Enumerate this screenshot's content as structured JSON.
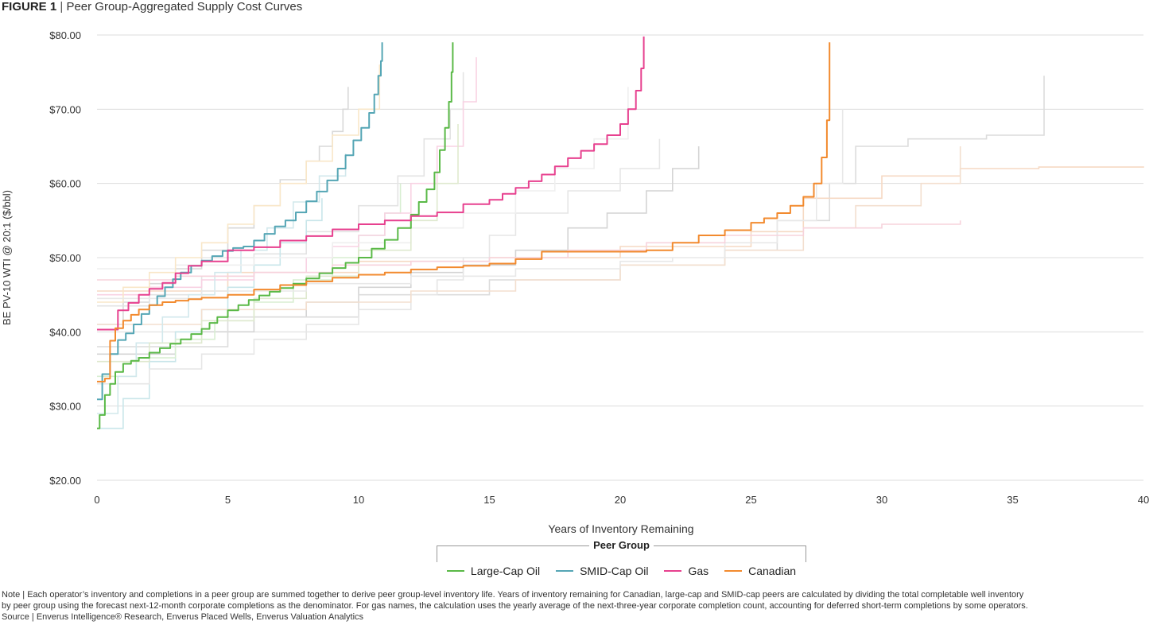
{
  "figure": {
    "number": "FIGURE 1",
    "separator": "|",
    "title": "Peer Group-Aggregated Supply Cost Curves"
  },
  "legend": {
    "title": "Peer Group",
    "items": [
      {
        "label": "Large-Cap Oil",
        "color": "#5ab947"
      },
      {
        "label": "SMID-Cap Oil",
        "color": "#55a6b5"
      },
      {
        "label": "Gas",
        "color": "#e7418f"
      },
      {
        "label": "Canadian",
        "color": "#f28a2e"
      }
    ]
  },
  "notes": {
    "line1": "Note | Each operator’s inventory and completions in a peer group are summed together to derive peer group-level inventory life. Years of inventory remaining for Canadian, large-cap and SMID-cap peers are calculated by dividing the total completable well inventory",
    "line2": "by peer group using the forecast next-12-month corporate completions as the denominator. For gas names, the calculation uses the yearly average of the next-three-year corporate completion count, accounting for deferred short-term completions by some operators.",
    "line3": "Source | Enverus Intelligence® Research, Enverus Placed Wells, Enverus Valuation Analytics"
  },
  "chart_data": {
    "type": "line",
    "title": "Peer Group-Aggregated Supply Cost Curves",
    "xlabel": "Years of Inventory Remaining",
    "ylabel": "BE PV-10 WTI @ 20:1 ($/bbl)",
    "xlim": [
      0,
      40
    ],
    "ylim": [
      20,
      80
    ],
    "x_ticks": [
      0,
      5,
      10,
      15,
      20,
      25,
      30,
      35,
      40
    ],
    "x_tick_labels": [
      "0",
      "5",
      "10",
      "15",
      "20",
      "25",
      "30",
      "35",
      "40"
    ],
    "y_ticks": [
      20,
      30,
      40,
      50,
      60,
      70,
      80
    ],
    "y_tick_labels": [
      "$20.00",
      "$30.00",
      "$40.00",
      "$50.00",
      "$60.00",
      "$70.00",
      "$80.00"
    ],
    "grid": "horizontal",
    "legend_position": "bottom-center",
    "step_curves": true,
    "series": [
      {
        "name": "Large-Cap Oil",
        "color": "#5ab947",
        "x": [
          0,
          0.1,
          0.3,
          0.5,
          0.7,
          1.0,
          1.3,
          1.6,
          2.0,
          2.4,
          2.8,
          3.2,
          3.6,
          4.0,
          4.3,
          4.6,
          5.0,
          5.4,
          5.8,
          6.2,
          6.6,
          7.0,
          7.5,
          8.0,
          8.5,
          9.0,
          9.5,
          10.0,
          10.5,
          11.0,
          11.5,
          12.0,
          12.3,
          12.6,
          12.9,
          13.1,
          13.3,
          13.45,
          13.55,
          13.6
        ],
        "y": [
          27.0,
          28.8,
          31.5,
          33.0,
          34.6,
          35.7,
          36.1,
          36.5,
          37.2,
          37.8,
          38.4,
          39.0,
          39.7,
          40.4,
          41.2,
          42.0,
          42.9,
          43.6,
          44.3,
          44.9,
          45.4,
          45.9,
          46.5,
          47.2,
          47.9,
          48.6,
          49.3,
          50.0,
          51.2,
          52.4,
          54.0,
          55.8,
          57.5,
          59.2,
          61.5,
          64.5,
          67.5,
          71.0,
          75.0,
          79.0
        ]
      },
      {
        "name": "SMID-Cap Oil",
        "color": "#55a6b5",
        "x": [
          0,
          0.2,
          0.5,
          0.8,
          1.1,
          1.4,
          1.7,
          2.0,
          2.3,
          2.6,
          2.9,
          3.2,
          3.6,
          4.0,
          4.4,
          4.8,
          5.2,
          5.6,
          6.0,
          6.4,
          6.8,
          7.2,
          7.6,
          8.0,
          8.4,
          8.8,
          9.2,
          9.5,
          9.8,
          10.1,
          10.4,
          10.6,
          10.75,
          10.85,
          10.9
        ],
        "y": [
          30.9,
          34.3,
          37.0,
          38.9,
          39.8,
          41.0,
          42.4,
          43.6,
          44.8,
          46.0,
          47.1,
          48.0,
          48.9,
          49.6,
          50.2,
          50.9,
          51.3,
          51.5,
          52.3,
          53.2,
          54.2,
          55.0,
          56.1,
          57.6,
          58.9,
          60.4,
          62.0,
          63.8,
          65.8,
          67.5,
          69.5,
          72.0,
          74.5,
          76.5,
          79.0
        ]
      },
      {
        "name": "Gas",
        "color": "#e7418f",
        "x": [
          0,
          0.8,
          1.2,
          1.6,
          2.0,
          2.5,
          3.0,
          3.5,
          4.0,
          5.0,
          6.0,
          7.0,
          8.0,
          9.0,
          10.0,
          11.0,
          12.0,
          13.0,
          14.0,
          15.0,
          15.5,
          16.0,
          16.5,
          17.0,
          17.5,
          18.0,
          18.5,
          19.0,
          19.5,
          20.0,
          20.3,
          20.6,
          20.8,
          20.9
        ],
        "y": [
          40.3,
          42.9,
          43.9,
          45.0,
          45.8,
          46.6,
          47.9,
          48.9,
          49.5,
          51.0,
          51.4,
          52.3,
          52.9,
          53.8,
          54.5,
          55.0,
          55.6,
          56.1,
          57.2,
          57.8,
          58.6,
          59.4,
          60.3,
          61.2,
          62.3,
          63.4,
          64.4,
          65.3,
          66.5,
          68.0,
          70.0,
          72.5,
          75.5,
          79.8
        ]
      },
      {
        "name": "Canadian",
        "color": "#f28a2e",
        "x": [
          0,
          0.3,
          0.5,
          0.7,
          1.0,
          1.3,
          1.6,
          2.0,
          2.5,
          3.0,
          3.5,
          4.0,
          5.0,
          6.0,
          7.0,
          8.0,
          9.0,
          10.0,
          11.0,
          12.0,
          13.0,
          14.0,
          15.0,
          16.0,
          17.0,
          18.0,
          19.0,
          20.0,
          21.0,
          22.0,
          23.0,
          24.0,
          25.0,
          25.5,
          26.0,
          26.5,
          27.0,
          27.4,
          27.7,
          27.9,
          28.0
        ],
        "y": [
          33.3,
          33.7,
          38.8,
          40.5,
          41.5,
          42.3,
          43.0,
          43.6,
          44.0,
          44.2,
          44.4,
          44.6,
          45.0,
          45.7,
          46.3,
          46.8,
          47.3,
          47.7,
          48.0,
          48.4,
          48.7,
          48.9,
          49.2,
          49.8,
          50.8,
          50.8,
          50.8,
          50.8,
          51.0,
          52.0,
          53.0,
          53.7,
          54.7,
          55.3,
          56.0,
          57.0,
          58.2,
          60.0,
          63.5,
          68.5,
          79.0
        ]
      }
    ]
  },
  "background_curves": [
    {
      "color": "#d8d8d8",
      "x": [
        0,
        1,
        2,
        3,
        4,
        5,
        6,
        7,
        8,
        8.5,
        9.0,
        9.4,
        9.6
      ],
      "y": [
        41.0,
        44.0,
        46.5,
        48.5,
        51.0,
        54.0,
        57.0,
        60.5,
        63.0,
        65.0,
        67.0,
        70.0,
        73.0
      ]
    },
    {
      "color": "#e3e3e3",
      "x": [
        0,
        2,
        4,
        6,
        8,
        10,
        11.5,
        12.5,
        13.5,
        14.0
      ],
      "y": [
        43.5,
        45.0,
        47.5,
        50.5,
        53.5,
        57.0,
        61.0,
        66.0,
        70.0,
        75.0
      ]
    },
    {
      "color": "#d4d4d4",
      "x": [
        0,
        3,
        6,
        8,
        10,
        12,
        14,
        16,
        18,
        19.5,
        21,
        22,
        23.0
      ],
      "y": [
        37.0,
        40.0,
        42.0,
        44.0,
        46.0,
        48.0,
        49.0,
        51.0,
        54.0,
        56.0,
        59.0,
        62.0,
        65.0
      ]
    },
    {
      "color": "#dcdcdc",
      "x": [
        0,
        5,
        10,
        15,
        20,
        24,
        26,
        28,
        29.0,
        31.0,
        34.0,
        36.2
      ],
      "y": [
        38.0,
        42.0,
        45.0,
        47.0,
        49.0,
        51.0,
        55.0,
        60.0,
        65.0,
        66.0,
        66.5,
        74.5
      ]
    },
    {
      "color": "#f6d9c3",
      "x": [
        0,
        5,
        10,
        15,
        20,
        25,
        27,
        30,
        33,
        36,
        40
      ],
      "y": [
        45.5,
        48.0,
        49.5,
        50.0,
        51.5,
        53.5,
        58.0,
        61.0,
        62.0,
        62.2,
        62.3
      ]
    },
    {
      "color": "#c9e6ea",
      "x": [
        0,
        1,
        2,
        3,
        4,
        5,
        6,
        7,
        8,
        8.6
      ],
      "y": [
        27.0,
        31.0,
        36.0,
        40.0,
        43.0,
        46.0,
        49.0,
        52.0,
        55.0,
        58.0
      ]
    },
    {
      "color": "#d8eed2",
      "x": [
        0,
        1.5,
        3,
        4.5,
        6,
        7.5,
        9,
        10,
        11,
        11.6
      ],
      "y": [
        34.0,
        36.5,
        39.0,
        41.5,
        44.0,
        47.0,
        50.0,
        53.0,
        56.0,
        60.0
      ]
    },
    {
      "color": "#f8d2e3",
      "x": [
        0,
        2,
        4,
        6,
        8,
        9,
        10,
        11,
        12,
        13,
        14,
        14.5
      ],
      "y": [
        45.0,
        46.0,
        47.0,
        48.0,
        50.0,
        51.5,
        53.0,
        56.0,
        60.0,
        65.0,
        71.0,
        77.0
      ]
    },
    {
      "color": "#e6e6e6",
      "x": [
        0,
        2,
        4,
        6,
        8,
        10,
        12,
        13,
        14,
        15,
        16,
        18,
        20,
        21.5
      ],
      "y": [
        33.0,
        35.0,
        37.0,
        39.0,
        41.0,
        43.0,
        45.0,
        47.0,
        50.0,
        53.0,
        56.0,
        59.0,
        62.0,
        66.0
      ]
    },
    {
      "color": "#f3dfcf",
      "x": [
        0,
        4,
        8,
        12,
        16,
        20,
        24,
        27,
        29,
        31.5,
        33.0
      ],
      "y": [
        41.0,
        43.0,
        44.0,
        45.5,
        47.0,
        49.0,
        51.0,
        54.0,
        57.0,
        60.0,
        65.0
      ]
    },
    {
      "color": "#d2e8ec",
      "x": [
        0,
        0.8,
        1.5,
        2.5,
        3.5,
        4.5,
        5.5,
        6.5,
        7.5,
        8.5,
        9.5
      ],
      "y": [
        29.0,
        34.0,
        38.5,
        42.0,
        45.0,
        48.0,
        51.0,
        54.0,
        57.5,
        61.0,
        64.0
      ]
    },
    {
      "color": "#efefef",
      "x": [
        0,
        3,
        6,
        9,
        12,
        14,
        16,
        17.5,
        19,
        20.3
      ],
      "y": [
        48.5,
        49.0,
        50.0,
        52.0,
        54.0,
        56.0,
        59.0,
        62.0,
        66.0,
        73.0
      ]
    },
    {
      "color": "#f9e7c8",
      "x": [
        0,
        1,
        2,
        3,
        4,
        5,
        6,
        7,
        8,
        9,
        10,
        10.8
      ],
      "y": [
        44.0,
        46.0,
        48.0,
        50.0,
        52.0,
        54.5,
        57.0,
        60.0,
        63.0,
        66.5,
        70.0,
        76.0
      ]
    },
    {
      "color": "#dfe9cf",
      "x": [
        0,
        2,
        4,
        6,
        8,
        10,
        12,
        13,
        13.8
      ],
      "y": [
        36.0,
        38.5,
        41.5,
        44.5,
        47.5,
        51.0,
        55.0,
        60.0,
        68.0
      ]
    },
    {
      "color": "#e8e8e8",
      "x": [
        0,
        4,
        8,
        12,
        16,
        20,
        22,
        24,
        26,
        27.5,
        28.5
      ],
      "y": [
        44.5,
        45.5,
        46.5,
        47.5,
        48.5,
        49.5,
        50.0,
        52.0,
        55.0,
        60.0,
        70.0
      ]
    },
    {
      "color": "#f7d3dc",
      "x": [
        0,
        3,
        6,
        9,
        12,
        15,
        18,
        21,
        24,
        27,
        30,
        33.0
      ],
      "y": [
        47.0,
        47.5,
        48.0,
        49.0,
        49.5,
        50.0,
        51.0,
        52.0,
        53.0,
        54.0,
        54.5,
        55.0
      ]
    }
  ]
}
